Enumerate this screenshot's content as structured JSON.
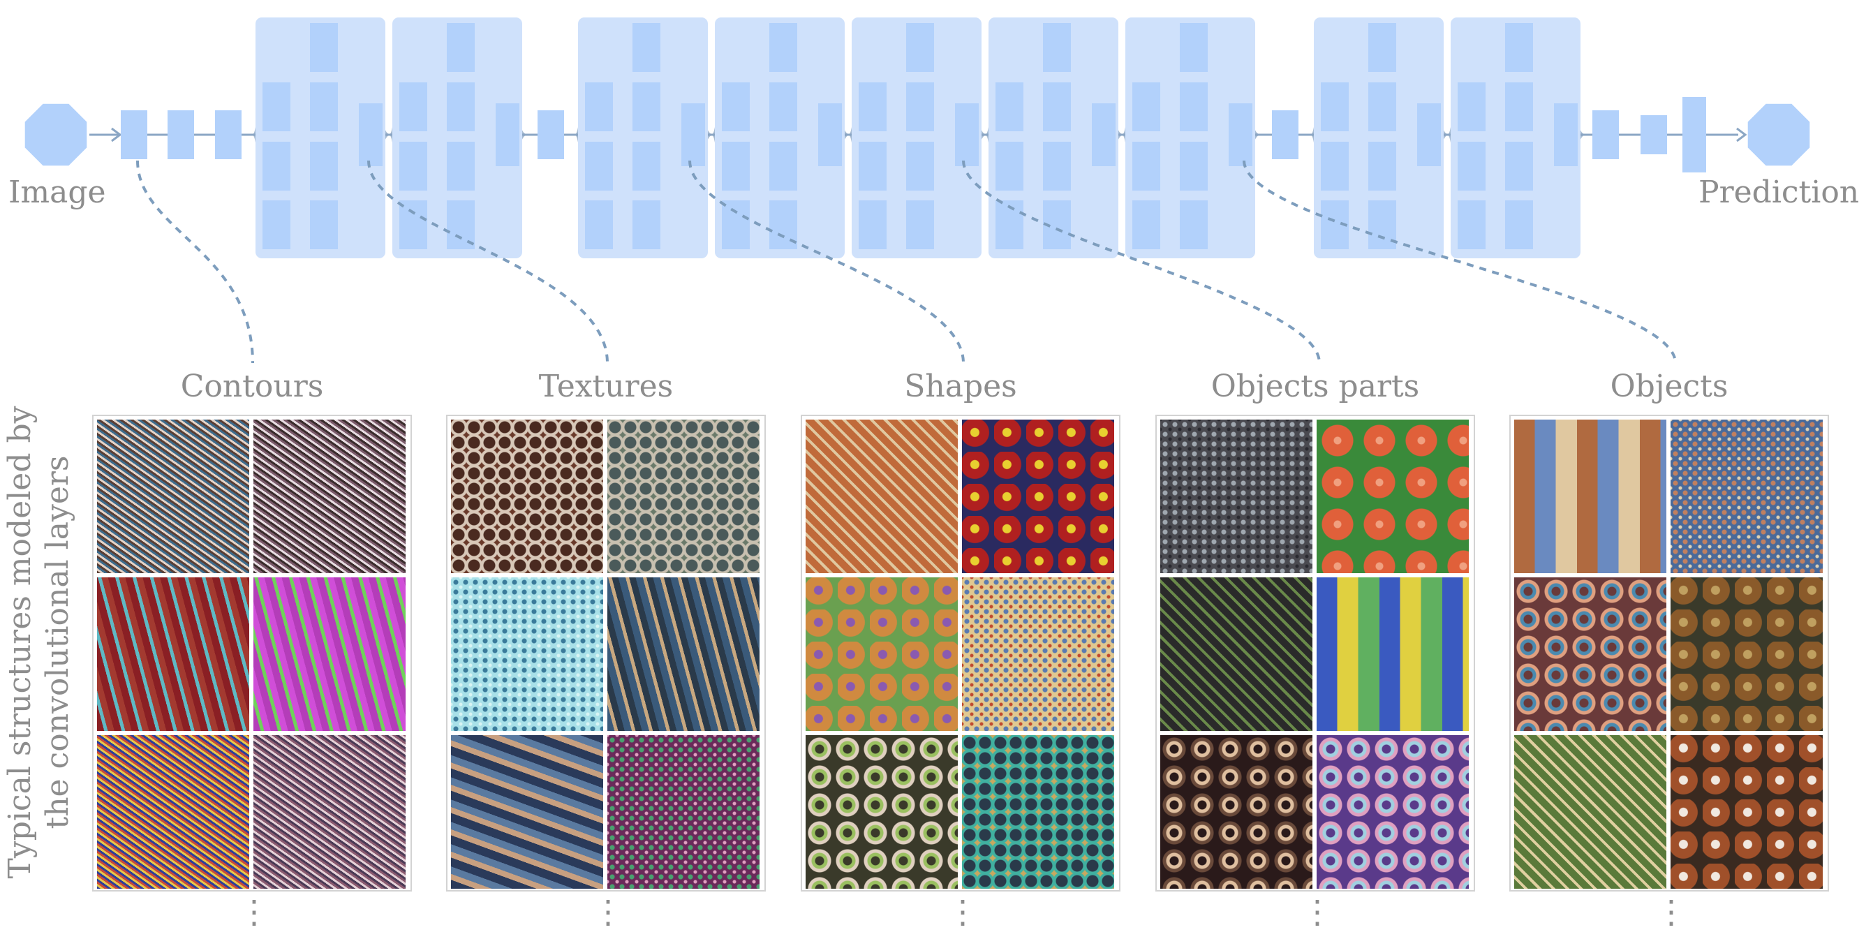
{
  "labels": {
    "input": "Image",
    "output": "Prediction",
    "y_axis_line1": "Typical structures modeled by",
    "y_axis_line2": "the convolutional layers",
    "ellipsis": "⋮"
  },
  "colors": {
    "block_fill": "#cfe1fb",
    "node_fill": "#b2d1fb",
    "edge": "#8ba6c4",
    "dashed_connector": "#7d9dbd",
    "text": "#8d8d8d"
  },
  "columns": [
    {
      "id": "contours",
      "title": "Contours",
      "tiles": [
        {
          "pattern": "fine-stripes",
          "hues": [
            "#5a3f35",
            "#e5d4c8",
            "#3d6b8c"
          ]
        },
        {
          "pattern": "fine-stripes",
          "hues": [
            "#3a2c2c",
            "#e8dde2",
            "#7a5a6a"
          ]
        },
        {
          "pattern": "wavy-stripes",
          "hues": [
            "#8a1f24",
            "#5fb9c4",
            "#a33a30"
          ]
        },
        {
          "pattern": "wavy-stripes",
          "hues": [
            "#b43db9",
            "#6fd25a",
            "#d04ed8"
          ]
        },
        {
          "pattern": "fine-stripes",
          "hues": [
            "#2c3f9a",
            "#e8c84a",
            "#c94a3a"
          ]
        },
        {
          "pattern": "fine-stripes",
          "hues": [
            "#4a3a55",
            "#e6d2d8",
            "#8a5a70"
          ]
        }
      ]
    },
    {
      "id": "textures",
      "title": "Textures",
      "tiles": [
        {
          "pattern": "cells",
          "hues": [
            "#4a2a20",
            "#d8c8b8",
            "#6a3a2a"
          ]
        },
        {
          "pattern": "cells",
          "hues": [
            "#4a5a5a",
            "#c8c0b0",
            "#6a7a6a"
          ]
        },
        {
          "pattern": "speckle",
          "hues": [
            "#a8e0e8",
            "#3a7a9a",
            "#d8f4f4"
          ]
        },
        {
          "pattern": "wavy-stripes",
          "hues": [
            "#3a5a7a",
            "#c8a880",
            "#2a3a4a"
          ]
        },
        {
          "pattern": "diagonal",
          "hues": [
            "#2a3a5a",
            "#c8a080",
            "#5a7aa0"
          ]
        },
        {
          "pattern": "speckle",
          "hues": [
            "#6a2a5a",
            "#4aa070",
            "#e0a0c0"
          ]
        }
      ]
    },
    {
      "id": "shapes",
      "title": "Shapes",
      "tiles": [
        {
          "pattern": "weave",
          "hues": [
            "#c06a3a",
            "#5a7ab0",
            "#e0c8a0"
          ]
        },
        {
          "pattern": "balls",
          "hues": [
            "#b02020",
            "#e8d030",
            "#2a2a60"
          ]
        },
        {
          "pattern": "balls",
          "hues": [
            "#d08a40",
            "#8a5ab0",
            "#6aa050"
          ]
        },
        {
          "pattern": "speckle",
          "hues": [
            "#e0c890",
            "#5a7ab0",
            "#c04a30"
          ]
        },
        {
          "pattern": "rings",
          "hues": [
            "#3a3a2a",
            "#9ac060",
            "#e0d0c0"
          ]
        },
        {
          "pattern": "cells",
          "hues": [
            "#2a3a4a",
            "#40b0a0",
            "#c8a860"
          ]
        }
      ]
    },
    {
      "id": "objects-parts",
      "title": "Objects parts",
      "tiles": [
        {
          "pattern": "speckle",
          "hues": [
            "#4a4a50",
            "#a0a8b0",
            "#2a2a30"
          ]
        },
        {
          "pattern": "flowers",
          "hues": [
            "#e0603a",
            "#3a8a3a",
            "#f0a080"
          ]
        },
        {
          "pattern": "weave",
          "hues": [
            "#2a2a2a",
            "#d8d0b0",
            "#6a8a4a"
          ]
        },
        {
          "pattern": "patches",
          "hues": [
            "#3a5ac0",
            "#e0d040",
            "#60b060"
          ]
        },
        {
          "pattern": "rings",
          "hues": [
            "#2a1a1a",
            "#e0c0a0",
            "#6a4a3a"
          ]
        },
        {
          "pattern": "rings",
          "hues": [
            "#5a3a8a",
            "#a0d0e0",
            "#e0a0c0"
          ]
        }
      ]
    },
    {
      "id": "objects",
      "title": "Objects",
      "tiles": [
        {
          "pattern": "patches",
          "hues": [
            "#b06a40",
            "#6a8ac0",
            "#e0c8a0"
          ]
        },
        {
          "pattern": "speckle",
          "hues": [
            "#4a6a9a",
            "#c08060",
            "#e0d0b0"
          ]
        },
        {
          "pattern": "rings",
          "hues": [
            "#6a3a3a",
            "#4a8ab0",
            "#e0a080"
          ]
        },
        {
          "pattern": "balls",
          "hues": [
            "#8a5a2a",
            "#c0a060",
            "#3a3a2a"
          ]
        },
        {
          "pattern": "weave",
          "hues": [
            "#5a7a3a",
            "#c04a3a",
            "#e0d0a0"
          ]
        },
        {
          "pattern": "balls",
          "hues": [
            "#a0502a",
            "#f0e8e0",
            "#3a2a20"
          ]
        }
      ]
    }
  ]
}
